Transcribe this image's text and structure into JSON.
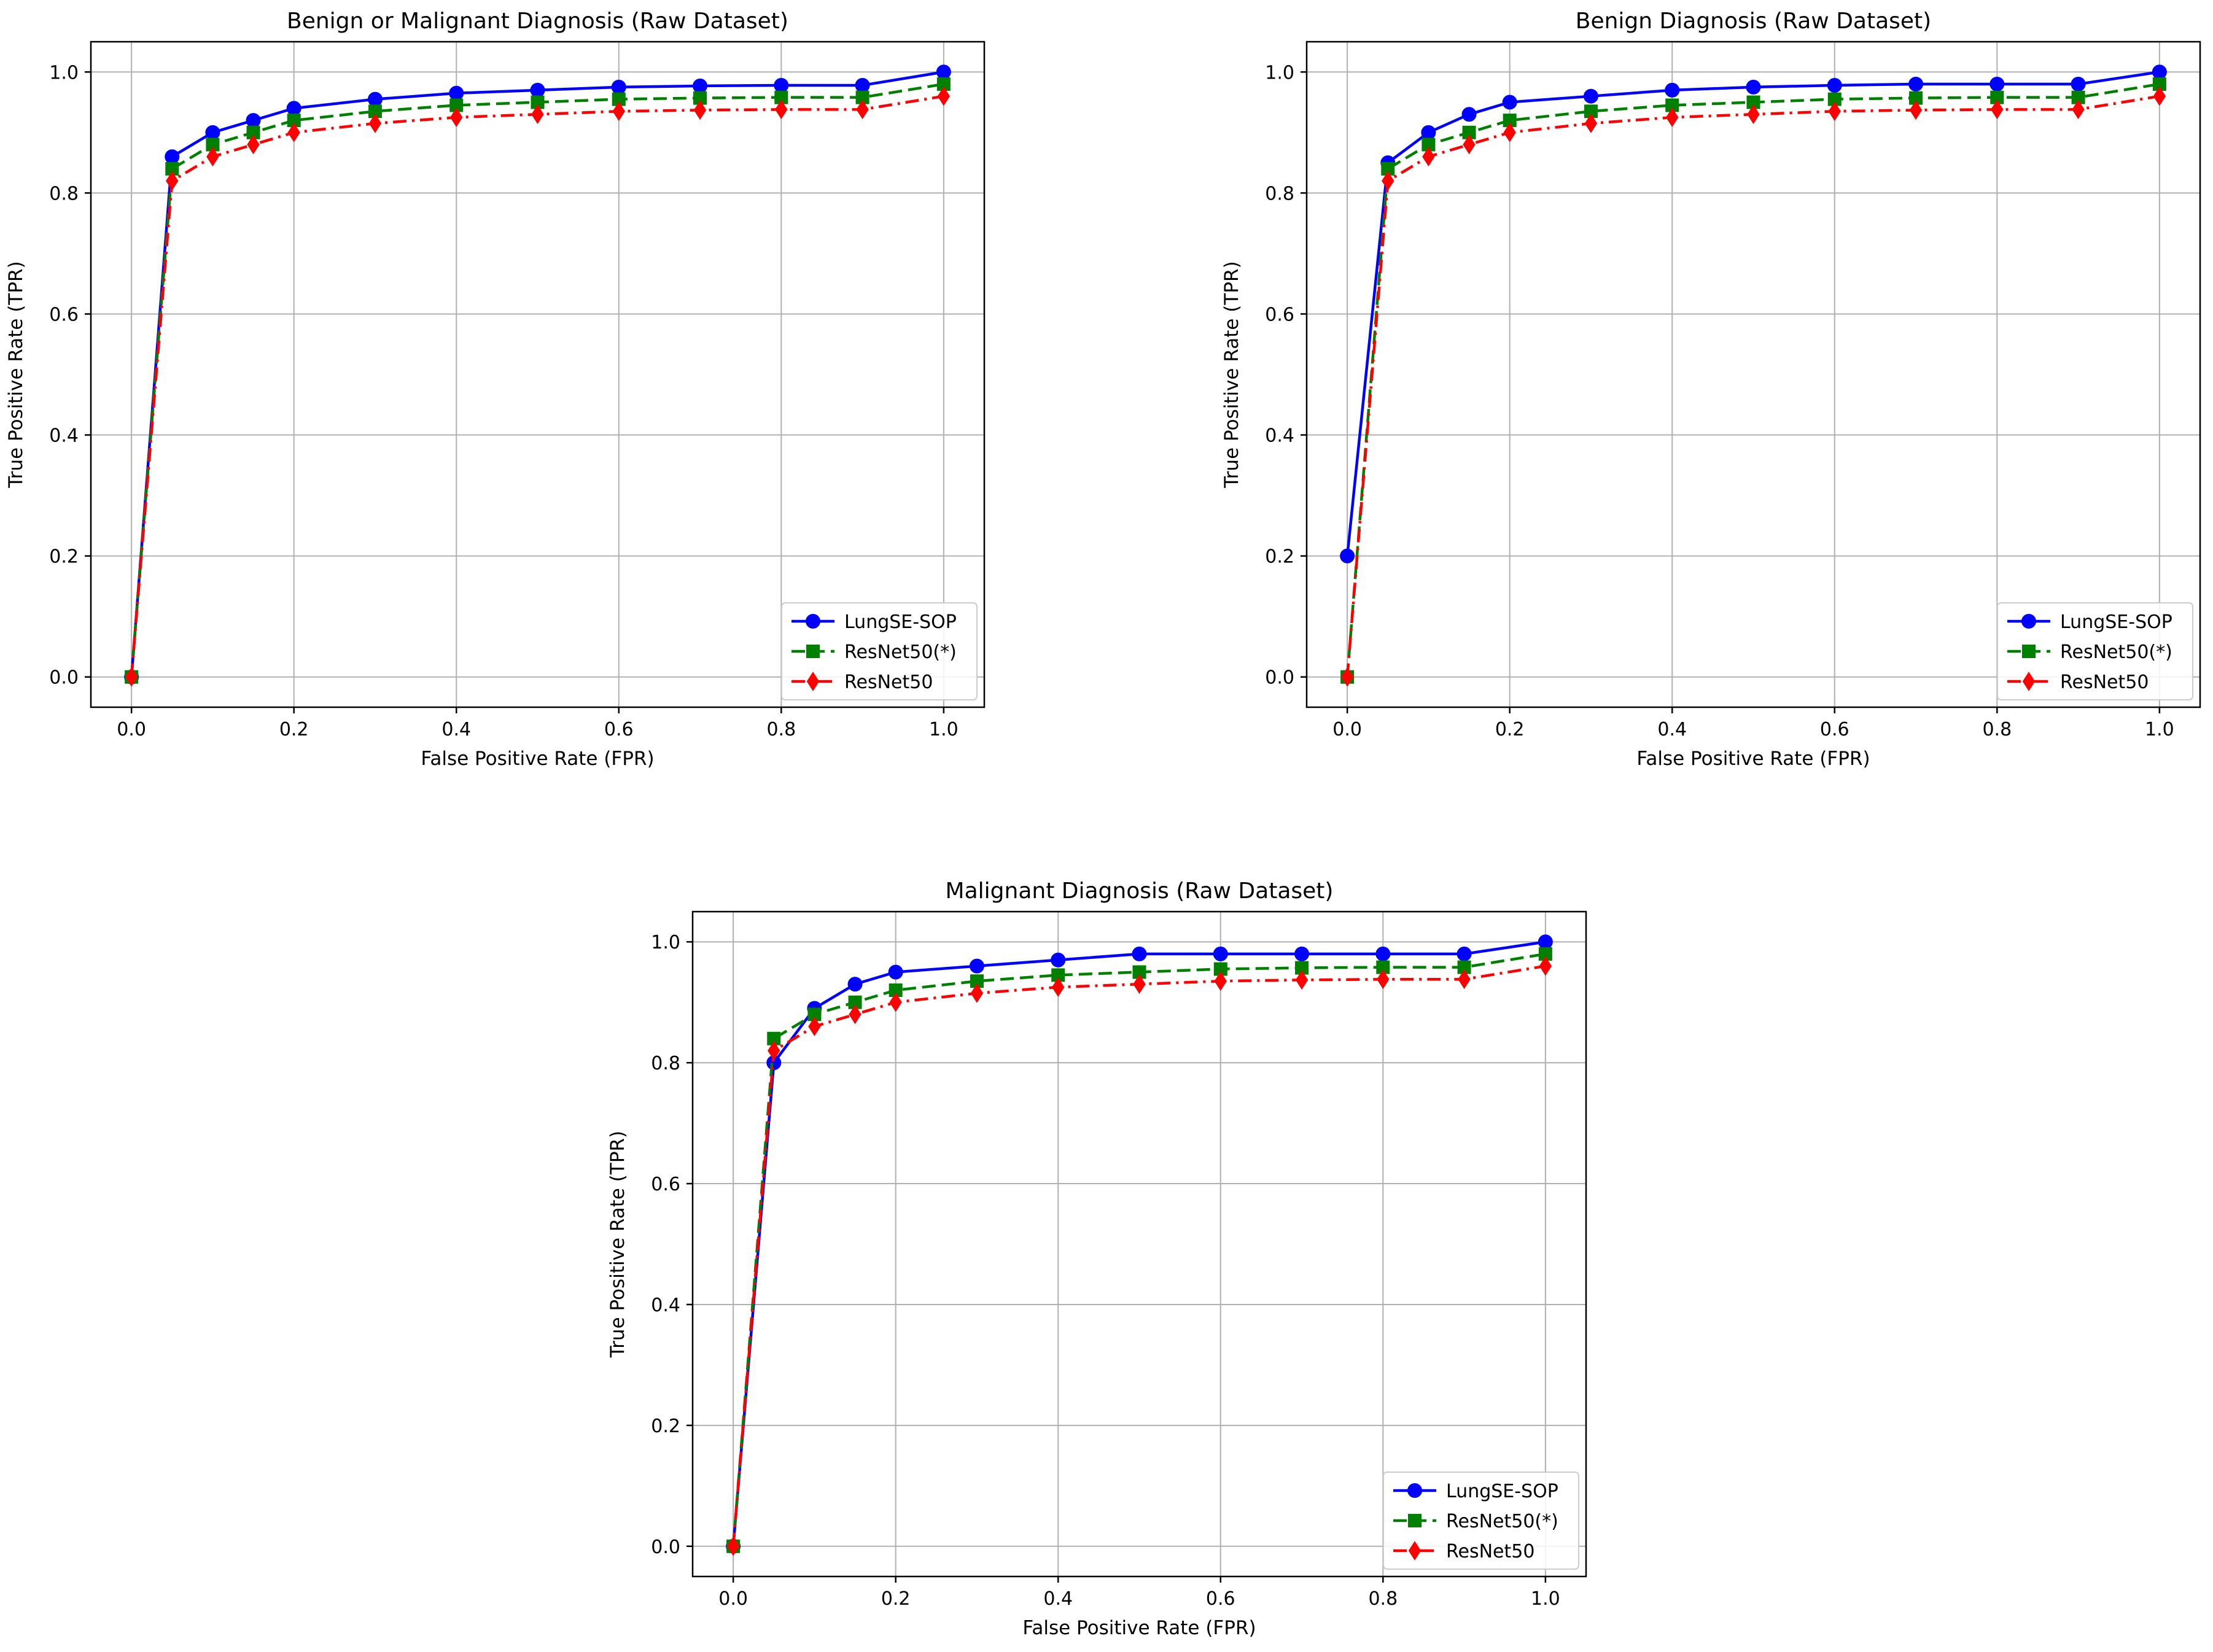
{
  "chart_data": [
    {
      "type": "line",
      "title": "Benign or Malignant Diagnosis (Raw Dataset)",
      "xlabel": "False Positive Rate (FPR)",
      "ylabel": "True Positive Rate (TPR)",
      "xlim": [
        -0.05,
        1.05
      ],
      "ylim": [
        -0.05,
        1.05
      ],
      "xticks": [
        0.0,
        0.2,
        0.4,
        0.6,
        0.8,
        1.0
      ],
      "yticks": [
        0.0,
        0.2,
        0.4,
        0.6,
        0.8,
        1.0
      ],
      "tick_labels": [
        "0.0",
        "0.2",
        "0.4",
        "0.6",
        "0.8",
        "1.0"
      ],
      "grid": true,
      "legend_position": "lower-right",
      "x": [
        0.0,
        0.05,
        0.1,
        0.15,
        0.2,
        0.3,
        0.4,
        0.5,
        0.6,
        0.7,
        0.8,
        0.9,
        1.0
      ],
      "series": [
        {
          "name": "LungSE-SOP",
          "color": "#0000ff",
          "linestyle": "solid",
          "marker": "circle",
          "values": [
            0.0,
            0.86,
            0.9,
            0.92,
            0.94,
            0.955,
            0.965,
            0.97,
            0.975,
            0.977,
            0.978,
            0.978,
            1.0
          ]
        },
        {
          "name": "ResNet50(*)",
          "color": "#008000",
          "linestyle": "dashed",
          "marker": "square",
          "values": [
            0.0,
            0.84,
            0.88,
            0.9,
            0.92,
            0.935,
            0.945,
            0.95,
            0.955,
            0.957,
            0.958,
            0.958,
            0.98
          ]
        },
        {
          "name": "ResNet50",
          "color": "#ff0000",
          "linestyle": "dashdot",
          "marker": "diamond",
          "values": [
            0.0,
            0.82,
            0.86,
            0.88,
            0.9,
            0.915,
            0.925,
            0.93,
            0.935,
            0.937,
            0.938,
            0.938,
            0.96
          ]
        }
      ]
    },
    {
      "type": "line",
      "title": "Benign Diagnosis (Raw Dataset)",
      "xlabel": "False Positive Rate (FPR)",
      "ylabel": "True Positive Rate (TPR)",
      "xlim": [
        -0.05,
        1.05
      ],
      "ylim": [
        -0.05,
        1.05
      ],
      "xticks": [
        0.0,
        0.2,
        0.4,
        0.6,
        0.8,
        1.0
      ],
      "yticks": [
        0.0,
        0.2,
        0.4,
        0.6,
        0.8,
        1.0
      ],
      "tick_labels": [
        "0.0",
        "0.2",
        "0.4",
        "0.6",
        "0.8",
        "1.0"
      ],
      "grid": true,
      "legend_position": "lower-right",
      "x": [
        0.0,
        0.05,
        0.1,
        0.15,
        0.2,
        0.3,
        0.4,
        0.5,
        0.6,
        0.7,
        0.8,
        0.9,
        1.0
      ],
      "series": [
        {
          "name": "LungSE-SOP",
          "color": "#0000ff",
          "linestyle": "solid",
          "marker": "circle",
          "values": [
            0.2,
            0.85,
            0.9,
            0.93,
            0.95,
            0.96,
            0.97,
            0.975,
            0.978,
            0.98,
            0.98,
            0.98,
            1.0
          ]
        },
        {
          "name": "ResNet50(*)",
          "color": "#008000",
          "linestyle": "dashed",
          "marker": "square",
          "values": [
            0.0,
            0.84,
            0.88,
            0.9,
            0.92,
            0.935,
            0.945,
            0.95,
            0.955,
            0.957,
            0.958,
            0.958,
            0.98
          ]
        },
        {
          "name": "ResNet50",
          "color": "#ff0000",
          "linestyle": "dashdot",
          "marker": "diamond",
          "values": [
            0.0,
            0.82,
            0.86,
            0.88,
            0.9,
            0.915,
            0.925,
            0.93,
            0.935,
            0.937,
            0.938,
            0.938,
            0.96
          ]
        }
      ]
    },
    {
      "type": "line",
      "title": "Malignant Diagnosis (Raw Dataset)",
      "xlabel": "False Positive Rate (FPR)",
      "ylabel": "True Positive Rate (TPR)",
      "xlim": [
        -0.05,
        1.05
      ],
      "ylim": [
        -0.05,
        1.05
      ],
      "xticks": [
        0.0,
        0.2,
        0.4,
        0.6,
        0.8,
        1.0
      ],
      "yticks": [
        0.0,
        0.2,
        0.4,
        0.6,
        0.8,
        1.0
      ],
      "tick_labels": [
        "0.0",
        "0.2",
        "0.4",
        "0.6",
        "0.8",
        "1.0"
      ],
      "grid": true,
      "legend_position": "lower-right",
      "x": [
        0.0,
        0.05,
        0.1,
        0.15,
        0.2,
        0.3,
        0.4,
        0.5,
        0.6,
        0.7,
        0.8,
        0.9,
        1.0
      ],
      "series": [
        {
          "name": "LungSE-SOP",
          "color": "#0000ff",
          "linestyle": "solid",
          "marker": "circle",
          "values": [
            0.0,
            0.8,
            0.89,
            0.93,
            0.95,
            0.96,
            0.97,
            0.98,
            0.98,
            0.98,
            0.98,
            0.98,
            1.0
          ]
        },
        {
          "name": "ResNet50(*)",
          "color": "#008000",
          "linestyle": "dashed",
          "marker": "square",
          "values": [
            0.0,
            0.84,
            0.88,
            0.9,
            0.92,
            0.935,
            0.945,
            0.95,
            0.955,
            0.957,
            0.958,
            0.958,
            0.98
          ]
        },
        {
          "name": "ResNet50",
          "color": "#ff0000",
          "linestyle": "dashdot",
          "marker": "diamond",
          "values": [
            0.0,
            0.82,
            0.86,
            0.88,
            0.9,
            0.915,
            0.925,
            0.93,
            0.935,
            0.937,
            0.938,
            0.938,
            0.96
          ]
        }
      ]
    }
  ]
}
